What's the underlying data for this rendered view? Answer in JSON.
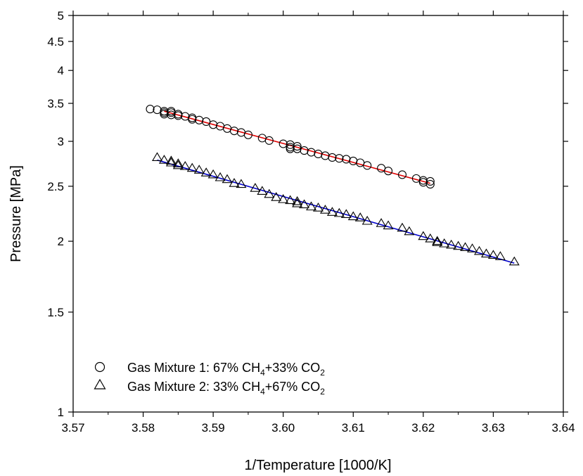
{
  "chart_data": {
    "type": "scatter",
    "xlabel": "1/Temperature [1000/K]",
    "ylabel": "Pressure [MPa]",
    "xlim": [
      3.57,
      3.64
    ],
    "ylim": [
      1,
      5
    ],
    "y_scale": "log",
    "x_ticks": [
      "3.57",
      "3.58",
      "3.59",
      "3.60",
      "3.61",
      "3.62",
      "3.63",
      "3.64"
    ],
    "y_ticks": [
      "1",
      "1.5",
      "2",
      "2.5",
      "3",
      "3.5",
      "4",
      "4.5",
      "5"
    ],
    "grid": false,
    "legend_position": "bottom-left",
    "series": [
      {
        "name": "Gas Mixture 1: 67% CH4+33% CO2",
        "legend_parts": [
          "Gas Mixture 1: 67% CH",
          "4",
          "+33% CO",
          "2"
        ],
        "marker": "circle",
        "fit_color": "#e00000",
        "fit_line": {
          "x": [
            3.583,
            3.621
          ],
          "y": [
            3.39,
            2.53
          ]
        },
        "points": [
          [
            3.581,
            3.42
          ],
          [
            3.582,
            3.41
          ],
          [
            3.583,
            3.39
          ],
          [
            3.583,
            3.37
          ],
          [
            3.583,
            3.35
          ],
          [
            3.584,
            3.39
          ],
          [
            3.584,
            3.37
          ],
          [
            3.584,
            3.34
          ],
          [
            3.585,
            3.35
          ],
          [
            3.585,
            3.33
          ],
          [
            3.586,
            3.32
          ],
          [
            3.587,
            3.3
          ],
          [
            3.587,
            3.28
          ],
          [
            3.588,
            3.27
          ],
          [
            3.589,
            3.25
          ],
          [
            3.59,
            3.21
          ],
          [
            3.591,
            3.19
          ],
          [
            3.592,
            3.16
          ],
          [
            3.593,
            3.13
          ],
          [
            3.594,
            3.11
          ],
          [
            3.595,
            3.08
          ],
          [
            3.597,
            3.04
          ],
          [
            3.598,
            3.01
          ],
          [
            3.6,
            2.97
          ],
          [
            3.601,
            2.96
          ],
          [
            3.601,
            2.93
          ],
          [
            3.601,
            2.91
          ],
          [
            3.602,
            2.94
          ],
          [
            3.602,
            2.91
          ],
          [
            3.603,
            2.89
          ],
          [
            3.604,
            2.87
          ],
          [
            3.605,
            2.85
          ],
          [
            3.606,
            2.83
          ],
          [
            3.607,
            2.81
          ],
          [
            3.608,
            2.8
          ],
          [
            3.609,
            2.79
          ],
          [
            3.61,
            2.77
          ],
          [
            3.611,
            2.75
          ],
          [
            3.612,
            2.72
          ],
          [
            3.614,
            2.69
          ],
          [
            3.615,
            2.66
          ],
          [
            3.617,
            2.62
          ],
          [
            3.619,
            2.58
          ],
          [
            3.62,
            2.56
          ],
          [
            3.62,
            2.54
          ],
          [
            3.621,
            2.55
          ],
          [
            3.621,
            2.52
          ]
        ]
      },
      {
        "name": "Gas Mixture 2: 33% CH4+67% CO2",
        "legend_parts": [
          "Gas Mixture 2: 33% CH",
          "4",
          "+67% CO",
          "2"
        ],
        "marker": "triangle",
        "fit_color": "#0000cc",
        "fit_line": {
          "x": [
            3.582,
            3.633
          ],
          "y": [
            2.78,
            1.83
          ]
        },
        "points": [
          [
            3.582,
            2.81
          ],
          [
            3.583,
            2.78
          ],
          [
            3.584,
            2.77
          ],
          [
            3.584,
            2.75
          ],
          [
            3.585,
            2.74
          ],
          [
            3.585,
            2.72
          ],
          [
            3.586,
            2.71
          ],
          [
            3.587,
            2.69
          ],
          [
            3.588,
            2.67
          ],
          [
            3.589,
            2.64
          ],
          [
            3.59,
            2.62
          ],
          [
            3.591,
            2.59
          ],
          [
            3.592,
            2.57
          ],
          [
            3.593,
            2.53
          ],
          [
            3.594,
            2.52
          ],
          [
            3.596,
            2.48
          ],
          [
            3.597,
            2.45
          ],
          [
            3.598,
            2.42
          ],
          [
            3.599,
            2.39
          ],
          [
            3.6,
            2.37
          ],
          [
            3.601,
            2.36
          ],
          [
            3.602,
            2.35
          ],
          [
            3.602,
            2.33
          ],
          [
            3.603,
            2.32
          ],
          [
            3.604,
            2.3
          ],
          [
            3.605,
            2.29
          ],
          [
            3.606,
            2.27
          ],
          [
            3.607,
            2.25
          ],
          [
            3.608,
            2.24
          ],
          [
            3.609,
            2.23
          ],
          [
            3.61,
            2.21
          ],
          [
            3.611,
            2.2
          ],
          [
            3.612,
            2.17
          ],
          [
            3.614,
            2.15
          ],
          [
            3.615,
            2.13
          ],
          [
            3.617,
            2.11
          ],
          [
            3.618,
            2.08
          ],
          [
            3.62,
            2.04
          ],
          [
            3.621,
            2.02
          ],
          [
            3.622,
            2.0
          ],
          [
            3.622,
            1.99
          ],
          [
            3.623,
            1.98
          ],
          [
            3.624,
            1.97
          ],
          [
            3.625,
            1.96
          ],
          [
            3.626,
            1.95
          ],
          [
            3.627,
            1.94
          ],
          [
            3.628,
            1.92
          ],
          [
            3.629,
            1.9
          ],
          [
            3.63,
            1.89
          ],
          [
            3.631,
            1.88
          ],
          [
            3.633,
            1.84
          ]
        ]
      }
    ]
  }
}
